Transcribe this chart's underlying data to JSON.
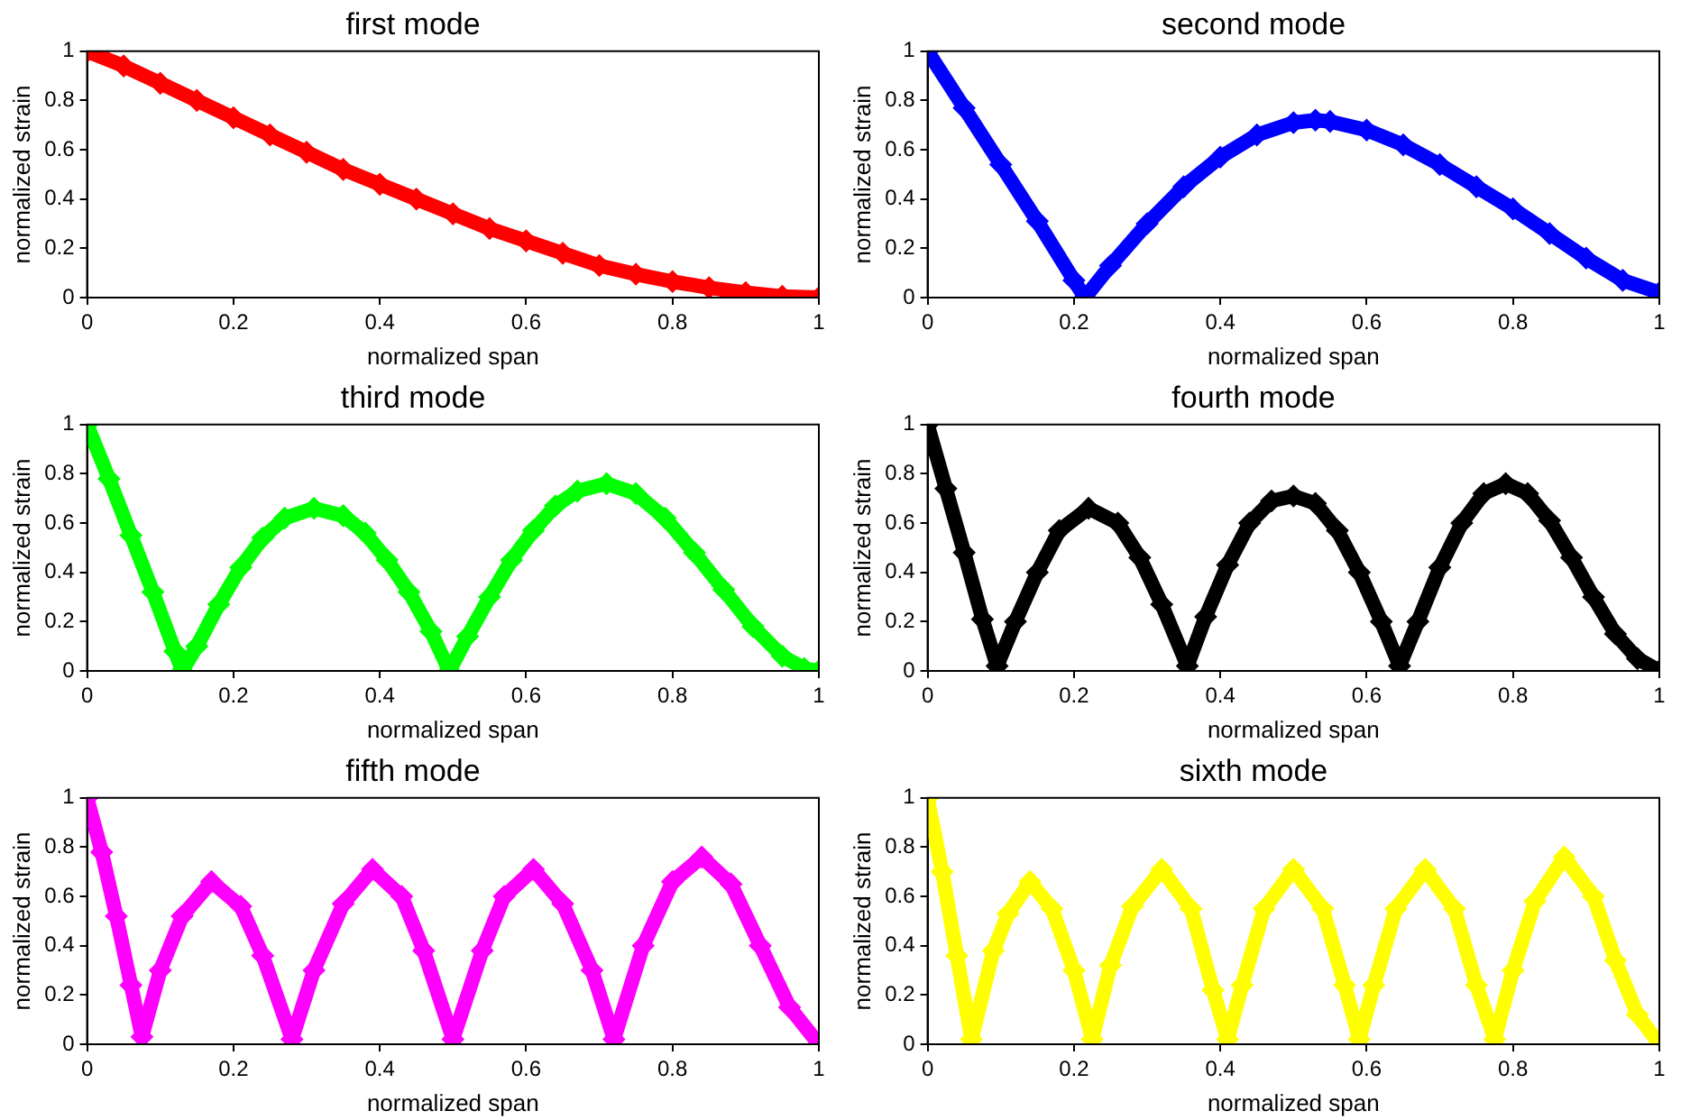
{
  "chart_data": [
    {
      "type": "line",
      "title": "first mode",
      "xlabel": "normalized span",
      "ylabel": "normalized strain",
      "xlim": [
        0,
        1
      ],
      "ylim": [
        0,
        1
      ],
      "xticks": [
        0,
        0.2,
        0.4,
        0.6,
        0.8,
        1
      ],
      "yticks": [
        0,
        0.2,
        0.4,
        0.6,
        0.8,
        1
      ],
      "marker": "diamond",
      "line_style": "solid",
      "x": [
        0,
        0.05,
        0.1,
        0.15,
        0.2,
        0.25,
        0.3,
        0.35,
        0.4,
        0.45,
        0.5,
        0.55,
        0.6,
        0.65,
        0.7,
        0.75,
        0.8,
        0.85,
        0.9,
        0.95,
        1
      ],
      "series": [
        {
          "color": "#ff0000",
          "values": [
            1,
            0.94,
            0.87,
            0.8,
            0.73,
            0.66,
            0.59,
            0.52,
            0.46,
            0.4,
            0.34,
            0.28,
            0.23,
            0.18,
            0.13,
            0.095,
            0.065,
            0.04,
            0.02,
            0.005,
            0
          ]
        }
      ]
    },
    {
      "type": "line",
      "title": "second mode",
      "xlabel": "normalized span",
      "ylabel": "normalized strain",
      "xlim": [
        0,
        1
      ],
      "ylim": [
        0,
        1
      ],
      "xticks": [
        0,
        0.2,
        0.4,
        0.6,
        0.8,
        1
      ],
      "yticks": [
        0,
        0.2,
        0.4,
        0.6,
        0.8,
        1
      ],
      "marker": "diamond",
      "line_style": "solid",
      "x": [
        0,
        0.05,
        0.1,
        0.15,
        0.2,
        0.215,
        0.25,
        0.3,
        0.35,
        0.4,
        0.45,
        0.5,
        0.53,
        0.55,
        0.6,
        0.65,
        0.7,
        0.75,
        0.8,
        0.85,
        0.9,
        0.95,
        1
      ],
      "series": [
        {
          "color": "#0000ff",
          "values": [
            1,
            0.77,
            0.54,
            0.31,
            0.07,
            0,
            0.13,
            0.3,
            0.45,
            0.57,
            0.66,
            0.71,
            0.72,
            0.715,
            0.68,
            0.62,
            0.54,
            0.45,
            0.36,
            0.26,
            0.16,
            0.07,
            0.02
          ]
        }
      ]
    },
    {
      "type": "line",
      "title": "third mode",
      "xlabel": "normalized span",
      "ylabel": "normalized strain",
      "xlim": [
        0,
        1
      ],
      "ylim": [
        0,
        1
      ],
      "xticks": [
        0,
        0.2,
        0.4,
        0.6,
        0.8,
        1
      ],
      "yticks": [
        0,
        0.2,
        0.4,
        0.6,
        0.8,
        1
      ],
      "marker": "diamond",
      "line_style": "solid",
      "x": [
        0,
        0.03,
        0.06,
        0.09,
        0.12,
        0.13,
        0.15,
        0.18,
        0.21,
        0.24,
        0.27,
        0.31,
        0.35,
        0.38,
        0.41,
        0.44,
        0.47,
        0.495,
        0.52,
        0.55,
        0.58,
        0.61,
        0.64,
        0.67,
        0.71,
        0.75,
        0.79,
        0.83,
        0.87,
        0.91,
        0.95,
        0.98,
        1
      ],
      "series": [
        {
          "color": "#00ff00",
          "values": [
            1,
            0.78,
            0.55,
            0.32,
            0.08,
            0,
            0.1,
            0.27,
            0.42,
            0.54,
            0.62,
            0.66,
            0.63,
            0.56,
            0.45,
            0.32,
            0.16,
            0,
            0.14,
            0.3,
            0.45,
            0.57,
            0.67,
            0.73,
            0.76,
            0.72,
            0.62,
            0.48,
            0.33,
            0.18,
            0.06,
            0.01,
            0
          ]
        }
      ]
    },
    {
      "type": "line",
      "title": "fourth mode",
      "xlabel": "normalized span",
      "ylabel": "normalized strain",
      "xlim": [
        0,
        1
      ],
      "ylim": [
        0,
        1
      ],
      "xticks": [
        0,
        0.2,
        0.4,
        0.6,
        0.8,
        1
      ],
      "yticks": [
        0,
        0.2,
        0.4,
        0.6,
        0.8,
        1
      ],
      "marker": "diamond",
      "line_style": "solid",
      "x": [
        0,
        0.025,
        0.05,
        0.075,
        0.095,
        0.12,
        0.15,
        0.18,
        0.22,
        0.26,
        0.29,
        0.32,
        0.355,
        0.38,
        0.41,
        0.44,
        0.47,
        0.5,
        0.53,
        0.56,
        0.59,
        0.62,
        0.645,
        0.67,
        0.7,
        0.73,
        0.76,
        0.79,
        0.82,
        0.85,
        0.88,
        0.91,
        0.94,
        0.97,
        1
      ],
      "series": [
        {
          "color": "#000000",
          "values": [
            1,
            0.74,
            0.48,
            0.21,
            0.02,
            0.2,
            0.4,
            0.57,
            0.66,
            0.6,
            0.46,
            0.27,
            0.02,
            0.22,
            0.43,
            0.6,
            0.69,
            0.71,
            0.68,
            0.57,
            0.4,
            0.2,
            0.02,
            0.2,
            0.42,
            0.6,
            0.72,
            0.76,
            0.72,
            0.61,
            0.46,
            0.3,
            0.15,
            0.05,
            0
          ]
        }
      ]
    },
    {
      "type": "line",
      "title": "fifth mode",
      "xlabel": "normalized span",
      "ylabel": "normalized strain",
      "xlim": [
        0,
        1
      ],
      "ylim": [
        0,
        1
      ],
      "xticks": [
        0,
        0.2,
        0.4,
        0.6,
        0.8,
        1
      ],
      "yticks": [
        0,
        0.2,
        0.4,
        0.6,
        0.8,
        1
      ],
      "marker": "diamond",
      "line_style": "solid",
      "x": [
        0,
        0.02,
        0.04,
        0.06,
        0.075,
        0.1,
        0.13,
        0.17,
        0.21,
        0.24,
        0.28,
        0.31,
        0.35,
        0.39,
        0.43,
        0.46,
        0.5,
        0.54,
        0.57,
        0.61,
        0.65,
        0.69,
        0.72,
        0.76,
        0.8,
        0.84,
        0.88,
        0.92,
        0.96,
        1
      ],
      "series": [
        {
          "color": "#ff00ff",
          "values": [
            1,
            0.78,
            0.52,
            0.24,
            0.03,
            0.3,
            0.52,
            0.66,
            0.56,
            0.36,
            0.02,
            0.3,
            0.57,
            0.71,
            0.6,
            0.38,
            0.02,
            0.38,
            0.6,
            0.71,
            0.57,
            0.3,
            0.02,
            0.4,
            0.66,
            0.76,
            0.65,
            0.4,
            0.15,
            0
          ]
        }
      ]
    },
    {
      "type": "line",
      "title": "sixth mode",
      "xlabel": "normalized span",
      "ylabel": "normalized strain",
      "xlim": [
        0,
        1
      ],
      "ylim": [
        0,
        1
      ],
      "xticks": [
        0,
        0.2,
        0.4,
        0.6,
        0.8,
        1
      ],
      "yticks": [
        0,
        0.2,
        0.4,
        0.6,
        0.8,
        1
      ],
      "marker": "diamond",
      "line_style": "solid",
      "x": [
        0,
        0.02,
        0.04,
        0.06,
        0.09,
        0.11,
        0.14,
        0.17,
        0.2,
        0.225,
        0.25,
        0.28,
        0.32,
        0.36,
        0.39,
        0.41,
        0.43,
        0.46,
        0.5,
        0.54,
        0.57,
        0.59,
        0.61,
        0.64,
        0.68,
        0.72,
        0.75,
        0.775,
        0.8,
        0.83,
        0.87,
        0.91,
        0.94,
        0.97,
        1
      ],
      "series": [
        {
          "color": "#ffff00",
          "values": [
            1,
            0.7,
            0.36,
            0.02,
            0.38,
            0.53,
            0.66,
            0.55,
            0.3,
            0.02,
            0.32,
            0.56,
            0.71,
            0.55,
            0.22,
            0.02,
            0.24,
            0.55,
            0.71,
            0.55,
            0.24,
            0.02,
            0.24,
            0.55,
            0.71,
            0.55,
            0.24,
            0.02,
            0.3,
            0.58,
            0.76,
            0.6,
            0.34,
            0.12,
            0
          ]
        }
      ]
    }
  ]
}
